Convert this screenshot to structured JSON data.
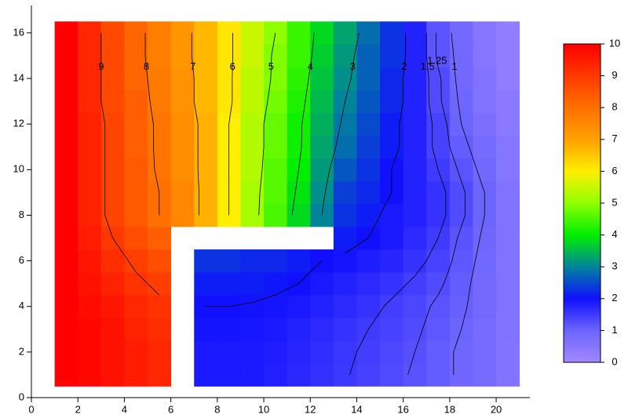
{
  "chart_data": {
    "type": "contour",
    "x": [
      1.5,
      2.5,
      3.5,
      4.5,
      5.5,
      6.5,
      7.5,
      8.5,
      9.5,
      10.5,
      11.5,
      12.5,
      13.5,
      14.5,
      15.5,
      16.5,
      17.5,
      18.5,
      19.5,
      20.5
    ],
    "y": [
      1,
      2,
      3,
      4,
      5,
      6,
      7,
      8,
      9,
      10,
      11,
      12,
      13,
      14,
      15,
      16
    ],
    "z": [
      [
        10,
        9.9,
        9.7,
        9.5,
        9.3,
        null,
        1.9,
        1.9,
        1.88,
        1.82,
        1.72,
        1.62,
        1.52,
        1.42,
        1.32,
        1.22,
        1.1,
        0.95,
        0.8,
        0.55
      ],
      [
        10,
        9.9,
        9.7,
        9.5,
        9.3,
        null,
        1.9,
        1.9,
        1.9,
        1.85,
        1.75,
        1.65,
        1.55,
        1.45,
        1.35,
        1.25,
        1.1,
        0.95,
        0.8,
        0.55
      ],
      [
        10,
        9.9,
        9.7,
        9.4,
        9.2,
        null,
        1.95,
        1.95,
        1.92,
        1.9,
        1.8,
        1.7,
        1.6,
        1.5,
        1.4,
        1.3,
        1.15,
        1.0,
        0.8,
        0.6
      ],
      [
        10,
        9.8,
        9.6,
        9.3,
        9.1,
        null,
        2.0,
        2.0,
        1.98,
        1.95,
        1.9,
        1.8,
        1.7,
        1.6,
        1.45,
        1.35,
        1.2,
        1.05,
        0.85,
        0.6
      ],
      [
        10,
        9.7,
        9.4,
        9.1,
        8.9,
        null,
        2.1,
        2.1,
        2.1,
        2.05,
        2.0,
        1.9,
        1.8,
        1.7,
        1.6,
        1.45,
        1.3,
        1.1,
        0.85,
        0.6
      ],
      [
        10,
        9.6,
        9.2,
        8.9,
        8.6,
        null,
        2.3,
        2.3,
        2.2,
        2.2,
        2.1,
        2.0,
        1.95,
        1.85,
        1.75,
        1.6,
        1.4,
        1.15,
        0.9,
        0.6
      ],
      [
        10,
        9.5,
        9.0,
        8.6,
        8.3,
        null,
        null,
        null,
        null,
        null,
        null,
        null,
        2.1,
        2.0,
        1.9,
        1.7,
        1.5,
        1.2,
        0.95,
        0.6
      ],
      [
        10,
        9.4,
        8.8,
        8.4,
        8.0,
        7.5,
        6.8,
        6.0,
        5.2,
        4.5,
        3.8,
        3.0,
        2.3,
        2.1,
        1.9,
        1.8,
        1.6,
        1.3,
        1.0,
        0.6
      ],
      [
        10,
        9.4,
        8.8,
        8.4,
        8.0,
        7.5,
        6.8,
        6.0,
        5.2,
        4.6,
        3.9,
        3.1,
        2.4,
        2.2,
        2.0,
        1.8,
        1.6,
        1.3,
        1.0,
        0.6
      ],
      [
        10,
        9.4,
        8.8,
        8.4,
        7.9,
        7.4,
        6.8,
        6.0,
        5.3,
        4.6,
        4.0,
        3.2,
        2.6,
        2.3,
        2.0,
        1.8,
        1.5,
        1.2,
        0.9,
        0.5
      ],
      [
        10,
        9.4,
        8.8,
        8.3,
        7.9,
        7.4,
        6.8,
        6.0,
        5.3,
        4.7,
        4.1,
        3.3,
        2.8,
        2.4,
        2.1,
        1.8,
        1.4,
        1.1,
        0.8,
        0.5
      ],
      [
        10,
        9.4,
        8.8,
        8.3,
        7.9,
        7.4,
        6.8,
        6.0,
        5.3,
        4.7,
        4.1,
        3.4,
        2.9,
        2.5,
        2.1,
        1.8,
        1.4,
        1.0,
        0.7,
        0.4
      ],
      [
        10,
        9.3,
        8.7,
        8.3,
        7.8,
        7.3,
        6.7,
        6.1,
        5.4,
        4.8,
        4.2,
        3.5,
        3.0,
        2.6,
        2.2,
        1.8,
        1.3,
        0.95,
        0.6,
        0.4
      ],
      [
        10,
        9.3,
        8.7,
        8.2,
        7.8,
        7.3,
        6.7,
        6.1,
        5.4,
        4.9,
        4.3,
        3.6,
        3.1,
        2.7,
        2.2,
        1.8,
        1.3,
        0.9,
        0.6,
        0.3
      ],
      [
        10,
        9.3,
        8.7,
        8.2,
        7.7,
        7.2,
        6.7,
        6.1,
        5.5,
        4.9,
        4.4,
        3.7,
        3.2,
        2.7,
        2.3,
        1.8,
        1.2,
        0.9,
        0.5,
        0.3
      ],
      [
        10,
        9.3,
        8.7,
        8.2,
        7.7,
        7.2,
        6.7,
        6.1,
        5.5,
        5.0,
        4.4,
        3.8,
        3.3,
        2.8,
        2.3,
        1.8,
        1.2,
        0.85,
        0.5,
        0.3
      ]
    ],
    "contour_levels": [
      1,
      1.25,
      1.5,
      2,
      3,
      4,
      5,
      6,
      7,
      8,
      9
    ],
    "xlim": [
      0,
      21.45
    ],
    "ylim": [
      0,
      17.2
    ],
    "xticks": [
      0,
      2,
      4,
      6,
      8,
      10,
      12,
      14,
      16,
      18,
      20
    ],
    "yticks": [
      0,
      2,
      4,
      6,
      8,
      10,
      12,
      14,
      16
    ],
    "zlim": [
      0,
      10
    ],
    "zticks": [
      0,
      1,
      2,
      3,
      4,
      5,
      6,
      7,
      8,
      9,
      10
    ],
    "colormap": [
      "#a088ff",
      "#6c64ff",
      "#1010ff",
      "#00849a",
      "#00ee00",
      "#90ff00",
      "#ffee00",
      "#ffa000",
      "#ff7000",
      "#ff3800",
      "#ff0000"
    ],
    "contour_color": "#000000"
  }
}
